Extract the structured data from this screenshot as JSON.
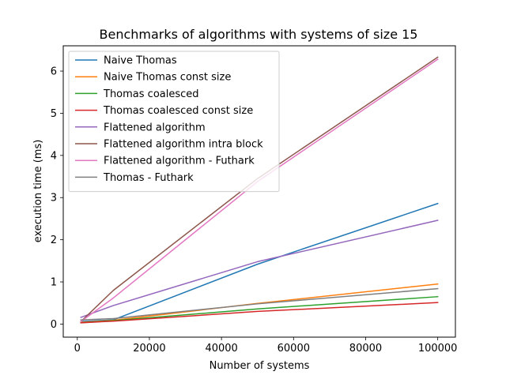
{
  "chart_data": {
    "type": "line",
    "title": "Benchmarks of algorithms with systems of size 15",
    "xlabel": "Number of systems",
    "ylabel": "execution time (ms)",
    "xlim": [
      -3900,
      104900
    ],
    "ylim": [
      -0.31,
      6.6
    ],
    "xticks": [
      0,
      20000,
      40000,
      60000,
      80000,
      100000
    ],
    "xtick_labels": [
      "0",
      "20000",
      "40000",
      "60000",
      "80000",
      "100000"
    ],
    "yticks": [
      0,
      1,
      2,
      3,
      4,
      5,
      6
    ],
    "ytick_labels": [
      "0",
      "1",
      "2",
      "3",
      "4",
      "5",
      "6"
    ],
    "grid": false,
    "legend_position": "top-left",
    "series": [
      {
        "name": "Naive Thomas",
        "color": "#1f77b4",
        "x": [
          1000,
          10000,
          50000,
          100000
        ],
        "y": [
          0.06,
          0.1,
          1.42,
          2.86
        ]
      },
      {
        "name": "Naive Thomas const size",
        "color": "#ff7f0e",
        "x": [
          1000,
          10000,
          50000,
          100000
        ],
        "y": [
          0.04,
          0.09,
          0.49,
          0.95
        ]
      },
      {
        "name": "Thomas coalesced",
        "color": "#2ca02c",
        "x": [
          1000,
          10000,
          50000,
          100000
        ],
        "y": [
          0.03,
          0.08,
          0.36,
          0.65
        ]
      },
      {
        "name": "Thomas coalesced const size",
        "color": "#d62728",
        "x": [
          1000,
          10000,
          50000,
          100000
        ],
        "y": [
          0.03,
          0.07,
          0.3,
          0.51
        ]
      },
      {
        "name": "Flattened algorithm",
        "color": "#9467bd",
        "x": [
          1000,
          10000,
          50000,
          100000
        ],
        "y": [
          0.16,
          0.44,
          1.48,
          2.46
        ]
      },
      {
        "name": "Flattened algorithm intra block",
        "color": "#8c564b",
        "x": [
          1000,
          10000,
          50000,
          100000
        ],
        "y": [
          0.06,
          0.8,
          3.45,
          6.33
        ]
      },
      {
        "name": "Flattened algorithm - Futhark",
        "color": "#e377c2",
        "x": [
          1000,
          10000,
          50000,
          100000
        ],
        "y": [
          0.06,
          0.62,
          3.38,
          6.28
        ]
      },
      {
        "name": "Thomas - Futhark",
        "color": "#7f7f7f",
        "x": [
          1000,
          10000,
          50000,
          100000
        ],
        "y": [
          0.1,
          0.13,
          0.48,
          0.84
        ]
      }
    ]
  }
}
